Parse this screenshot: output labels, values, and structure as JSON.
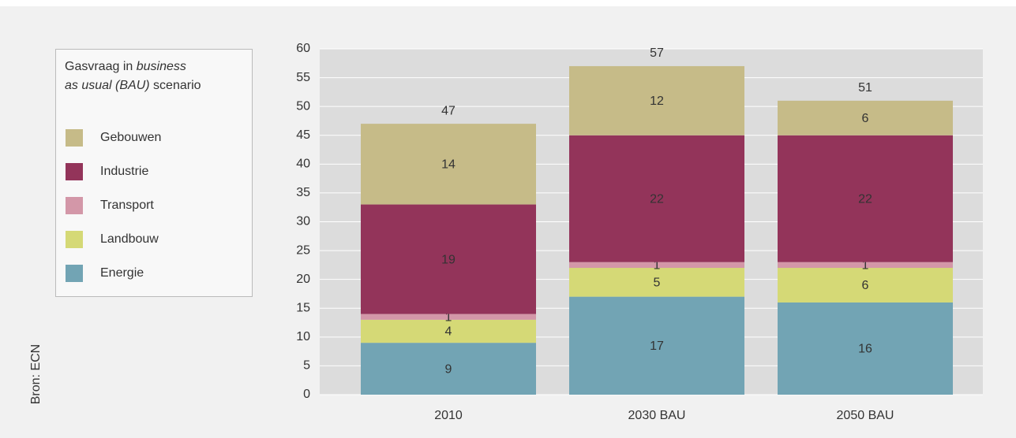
{
  "chart_data": {
    "type": "stacked_bar",
    "legend_title": [
      {
        "text": "Gasvraag in ",
        "italic": false
      },
      {
        "text": "business",
        "italic": true
      },
      {
        "text": "as usual (BAU)",
        "italic": true
      },
      {
        "text": " scenario",
        "italic": false
      }
    ],
    "source": "Bron: ECN",
    "categories": [
      "2010",
      "2030 BAU",
      "2050 BAU"
    ],
    "series": [
      {
        "name": "Energie",
        "color": "#72a4b4",
        "values": [
          9,
          17,
          16
        ]
      },
      {
        "name": "Landbouw",
        "color": "#d5d976",
        "values": [
          4,
          5,
          6
        ]
      },
      {
        "name": "Transport",
        "color": "#d397a8",
        "values": [
          1,
          1,
          1
        ]
      },
      {
        "name": "Industrie",
        "color": "#93345a",
        "values": [
          19,
          22,
          22
        ]
      },
      {
        "name": "Gebouwen",
        "color": "#c6bb88",
        "values": [
          14,
          12,
          6
        ]
      }
    ],
    "totals": [
      47,
      57,
      51
    ],
    "ylim": [
      0,
      60
    ],
    "yticks": [
      0,
      5,
      10,
      15,
      20,
      25,
      30,
      35,
      40,
      45,
      50,
      55,
      60
    ],
    "grid": true
  }
}
